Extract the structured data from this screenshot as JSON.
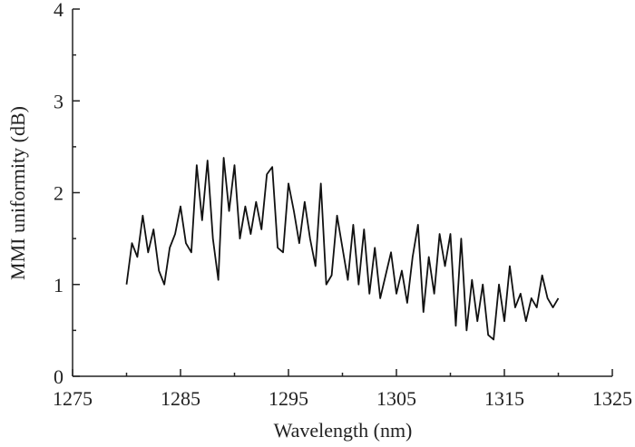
{
  "chart_data": {
    "type": "line",
    "xlabel": "Wavelength (nm)",
    "ylabel": "MMI uniformity (dB)",
    "xlim": [
      1275,
      1325
    ],
    "xticks": [
      1275,
      1285,
      1295,
      1305,
      1315,
      1325
    ],
    "xminorticks": [
      1280,
      1290,
      1300,
      1310,
      1320
    ],
    "ylim": [
      0,
      4
    ],
    "yticks": [
      0,
      1,
      2,
      3,
      4
    ],
    "yminorticks": [
      0.5,
      1.5,
      2.5,
      3.5
    ],
    "series": [
      {
        "color": "#111111",
        "x": [
          1280,
          1280.5,
          1281,
          1281.5,
          1282,
          1282.5,
          1283,
          1283.5,
          1284,
          1284.5,
          1285,
          1285.5,
          1286,
          1286.5,
          1287,
          1287.5,
          1288,
          1288.5,
          1289,
          1289.5,
          1290,
          1290.5,
          1291,
          1291.5,
          1292,
          1292.5,
          1293,
          1293.5,
          1294,
          1294.5,
          1295,
          1295.5,
          1296,
          1296.5,
          1297,
          1297.5,
          1298,
          1298.5,
          1299,
          1299.5,
          1300,
          1300.5,
          1301,
          1301.5,
          1302,
          1302.5,
          1303,
          1303.5,
          1304,
          1304.5,
          1305,
          1305.5,
          1306,
          1306.5,
          1307,
          1307.5,
          1308,
          1308.5,
          1309,
          1309.5,
          1310,
          1310.5,
          1311,
          1311.5,
          1312,
          1312.5,
          1313,
          1313.5,
          1314,
          1314.5,
          1315,
          1315.5,
          1316,
          1316.5,
          1317,
          1317.5,
          1318,
          1318.5,
          1319,
          1319.5,
          1320
        ],
        "values": [
          1.0,
          1.45,
          1.3,
          1.75,
          1.35,
          1.6,
          1.15,
          1.0,
          1.4,
          1.55,
          1.85,
          1.45,
          1.35,
          2.3,
          1.7,
          2.35,
          1.5,
          1.05,
          2.38,
          1.8,
          2.3,
          1.5,
          1.85,
          1.55,
          1.9,
          1.6,
          2.2,
          2.28,
          1.4,
          1.35,
          2.1,
          1.8,
          1.45,
          1.9,
          1.5,
          1.2,
          2.1,
          1.0,
          1.1,
          1.75,
          1.4,
          1.05,
          1.65,
          1.0,
          1.6,
          0.9,
          1.4,
          0.85,
          1.1,
          1.35,
          0.9,
          1.15,
          0.8,
          1.3,
          1.65,
          0.7,
          1.3,
          0.9,
          1.55,
          1.2,
          1.55,
          0.55,
          1.5,
          0.5,
          1.05,
          0.6,
          1.0,
          0.45,
          0.4,
          1.0,
          0.6,
          1.2,
          0.75,
          0.9,
          0.6,
          0.85,
          0.75,
          1.1,
          0.85,
          0.75,
          0.85
        ]
      }
    ]
  }
}
